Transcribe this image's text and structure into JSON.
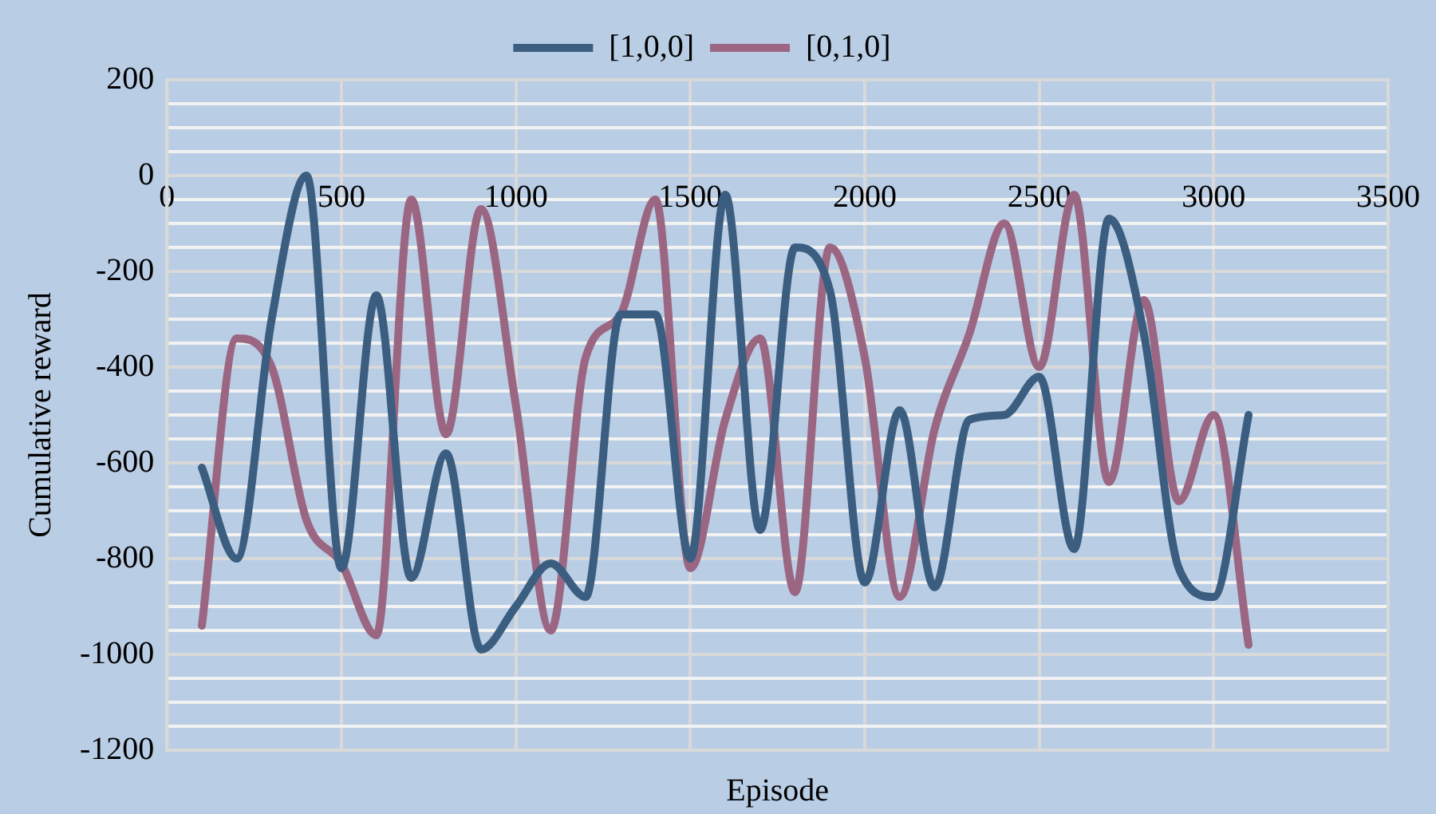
{
  "chart_data": {
    "type": "line",
    "xlabel": "Episode",
    "ylabel": "Cumulative reward",
    "x": [
      100,
      200,
      300,
      400,
      500,
      600,
      700,
      800,
      900,
      1000,
      1100,
      1200,
      1300,
      1400,
      1500,
      1600,
      1700,
      1800,
      1900,
      2000,
      2100,
      2200,
      2300,
      2400,
      2500,
      2600,
      2700,
      2800,
      2900,
      3000,
      3100
    ],
    "series": [
      {
        "name": "[1,0,0]",
        "color": "#3b5e80",
        "values": [
          -610,
          -800,
          -300,
          0,
          -820,
          -250,
          -840,
          -580,
          -990,
          -900,
          -810,
          -880,
          -290,
          -290,
          -800,
          -40,
          -740,
          -150,
          -240,
          -850,
          -490,
          -860,
          -510,
          -500,
          -420,
          -780,
          -90,
          -330,
          -820,
          -880,
          -500
        ]
      },
      {
        "name": "[0,1,0]",
        "color": "#9b6682",
        "values": [
          -940,
          -340,
          -400,
          -720,
          -810,
          -960,
          -50,
          -540,
          -70,
          -480,
          -950,
          -380,
          -290,
          -50,
          -820,
          -510,
          -340,
          -870,
          -150,
          -380,
          -880,
          -530,
          -330,
          -100,
          -400,
          -40,
          -640,
          -260,
          -680,
          -500,
          -980
        ]
      }
    ],
    "xlim": [
      0,
      3500
    ],
    "xticks": [
      0,
      500,
      1000,
      1500,
      2000,
      2500,
      3000,
      3500
    ],
    "ylim": [
      -1200,
      200
    ],
    "yticks": [
      -1200,
      {
        "value": -1150,
        "label": null
      },
      {
        "value": -1100,
        "label": null
      },
      {
        "value": -1050,
        "label": null
      },
      -1000,
      {
        "value": -950,
        "label": null
      },
      {
        "value": -900,
        "label": null
      },
      {
        "value": -850,
        "label": null
      },
      -800,
      {
        "value": -750,
        "label": null
      },
      {
        "value": -700,
        "label": null
      },
      {
        "value": -650,
        "label": null
      },
      -600,
      {
        "value": -550,
        "label": null
      },
      {
        "value": -500,
        "label": null
      },
      {
        "value": -450,
        "label": null
      },
      -400,
      {
        "value": -350,
        "label": null
      },
      {
        "value": -300,
        "label": null
      },
      {
        "value": -250,
        "label": null
      },
      -200,
      {
        "value": -150,
        "label": null
      },
      {
        "value": -100,
        "label": null
      },
      {
        "value": -50,
        "label": null
      },
      0,
      {
        "value": 50,
        "label": null
      },
      {
        "value": 100,
        "label": null
      },
      {
        "value": 150,
        "label": null
      },
      200
    ],
    "grid": true,
    "legend": "top",
    "marker": "none",
    "line_style": "solid"
  }
}
